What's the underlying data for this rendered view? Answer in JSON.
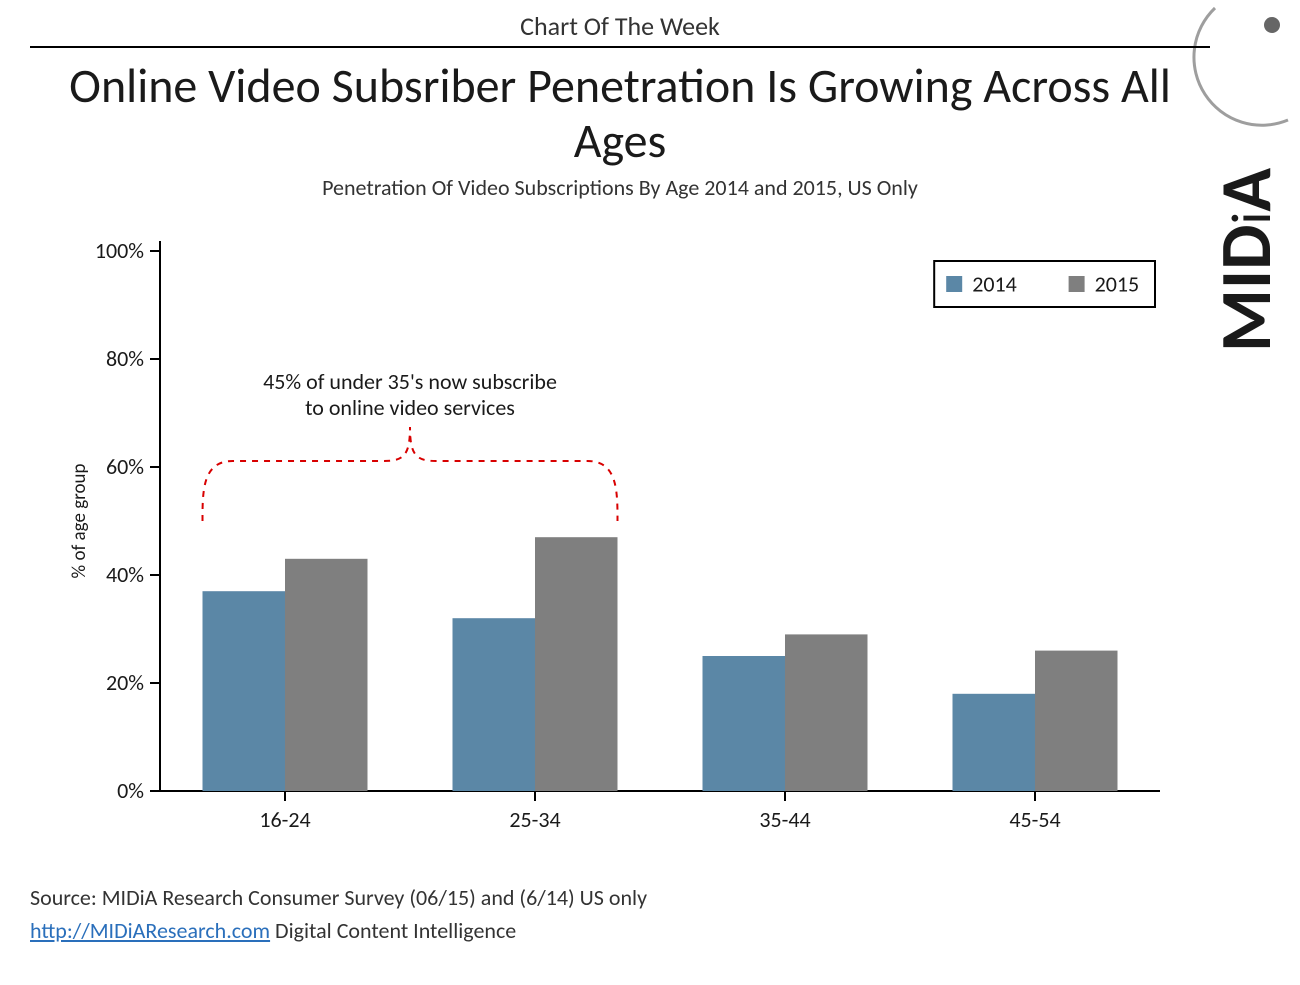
{
  "header": {
    "overline": "Chart Of The Week",
    "title": "Online Video Subsriber Penetration Is Growing Across All Ages",
    "subtitle": "Penetration Of Video Subscriptions By Age 2014 and 2015, US Only"
  },
  "logo": {
    "text": "MIDiA",
    "letter_color": "#1a1a1a",
    "dot_color": "#666666",
    "arc_color": "#9e9e9e"
  },
  "chart": {
    "type": "grouped-bar",
    "categories": [
      "16-24",
      "25-34",
      "35-44",
      "45-54"
    ],
    "series": [
      {
        "name": "2014",
        "color": "#5b87a6",
        "values": [
          37,
          32,
          25,
          18
        ]
      },
      {
        "name": "2015",
        "color": "#7f7f7f",
        "values": [
          43,
          47,
          29,
          26
        ]
      }
    ],
    "ylabel": "% of age group",
    "ylim": [
      0,
      100
    ],
    "ytick_step": 20,
    "ytick_suffix": "%",
    "axis_color": "#000000",
    "tick_color": "#000000",
    "tick_label_fontsize": 22,
    "ylabel_fontsize": 19,
    "xlabel_fontsize": 22,
    "bar_group_width": 0.66,
    "bar_gap_within_group": 0,
    "plot_background": "#ffffff",
    "grid": false,
    "legend": {
      "position": "top-right",
      "border_color": "#000000",
      "fontsize": 22,
      "swatch_size": 16
    },
    "annotation": {
      "text": "45% of under 35's now subscribe to online video services",
      "fontsize": 22,
      "color": "#1a1a1a",
      "brace_color": "#d80000",
      "brace_dash": "6,6",
      "brace_stroke_width": 2,
      "spans_categories": [
        0,
        1
      ],
      "y_value": 50
    }
  },
  "footer": {
    "source_line": "Source: MIDiA Research Consumer Survey (06/15) and (6/14)   US only",
    "link_text": "http://MIDiAResearch.com",
    "link_href": "http://MIDiAResearch.com",
    "tagline": " Digital Content Intelligence"
  }
}
